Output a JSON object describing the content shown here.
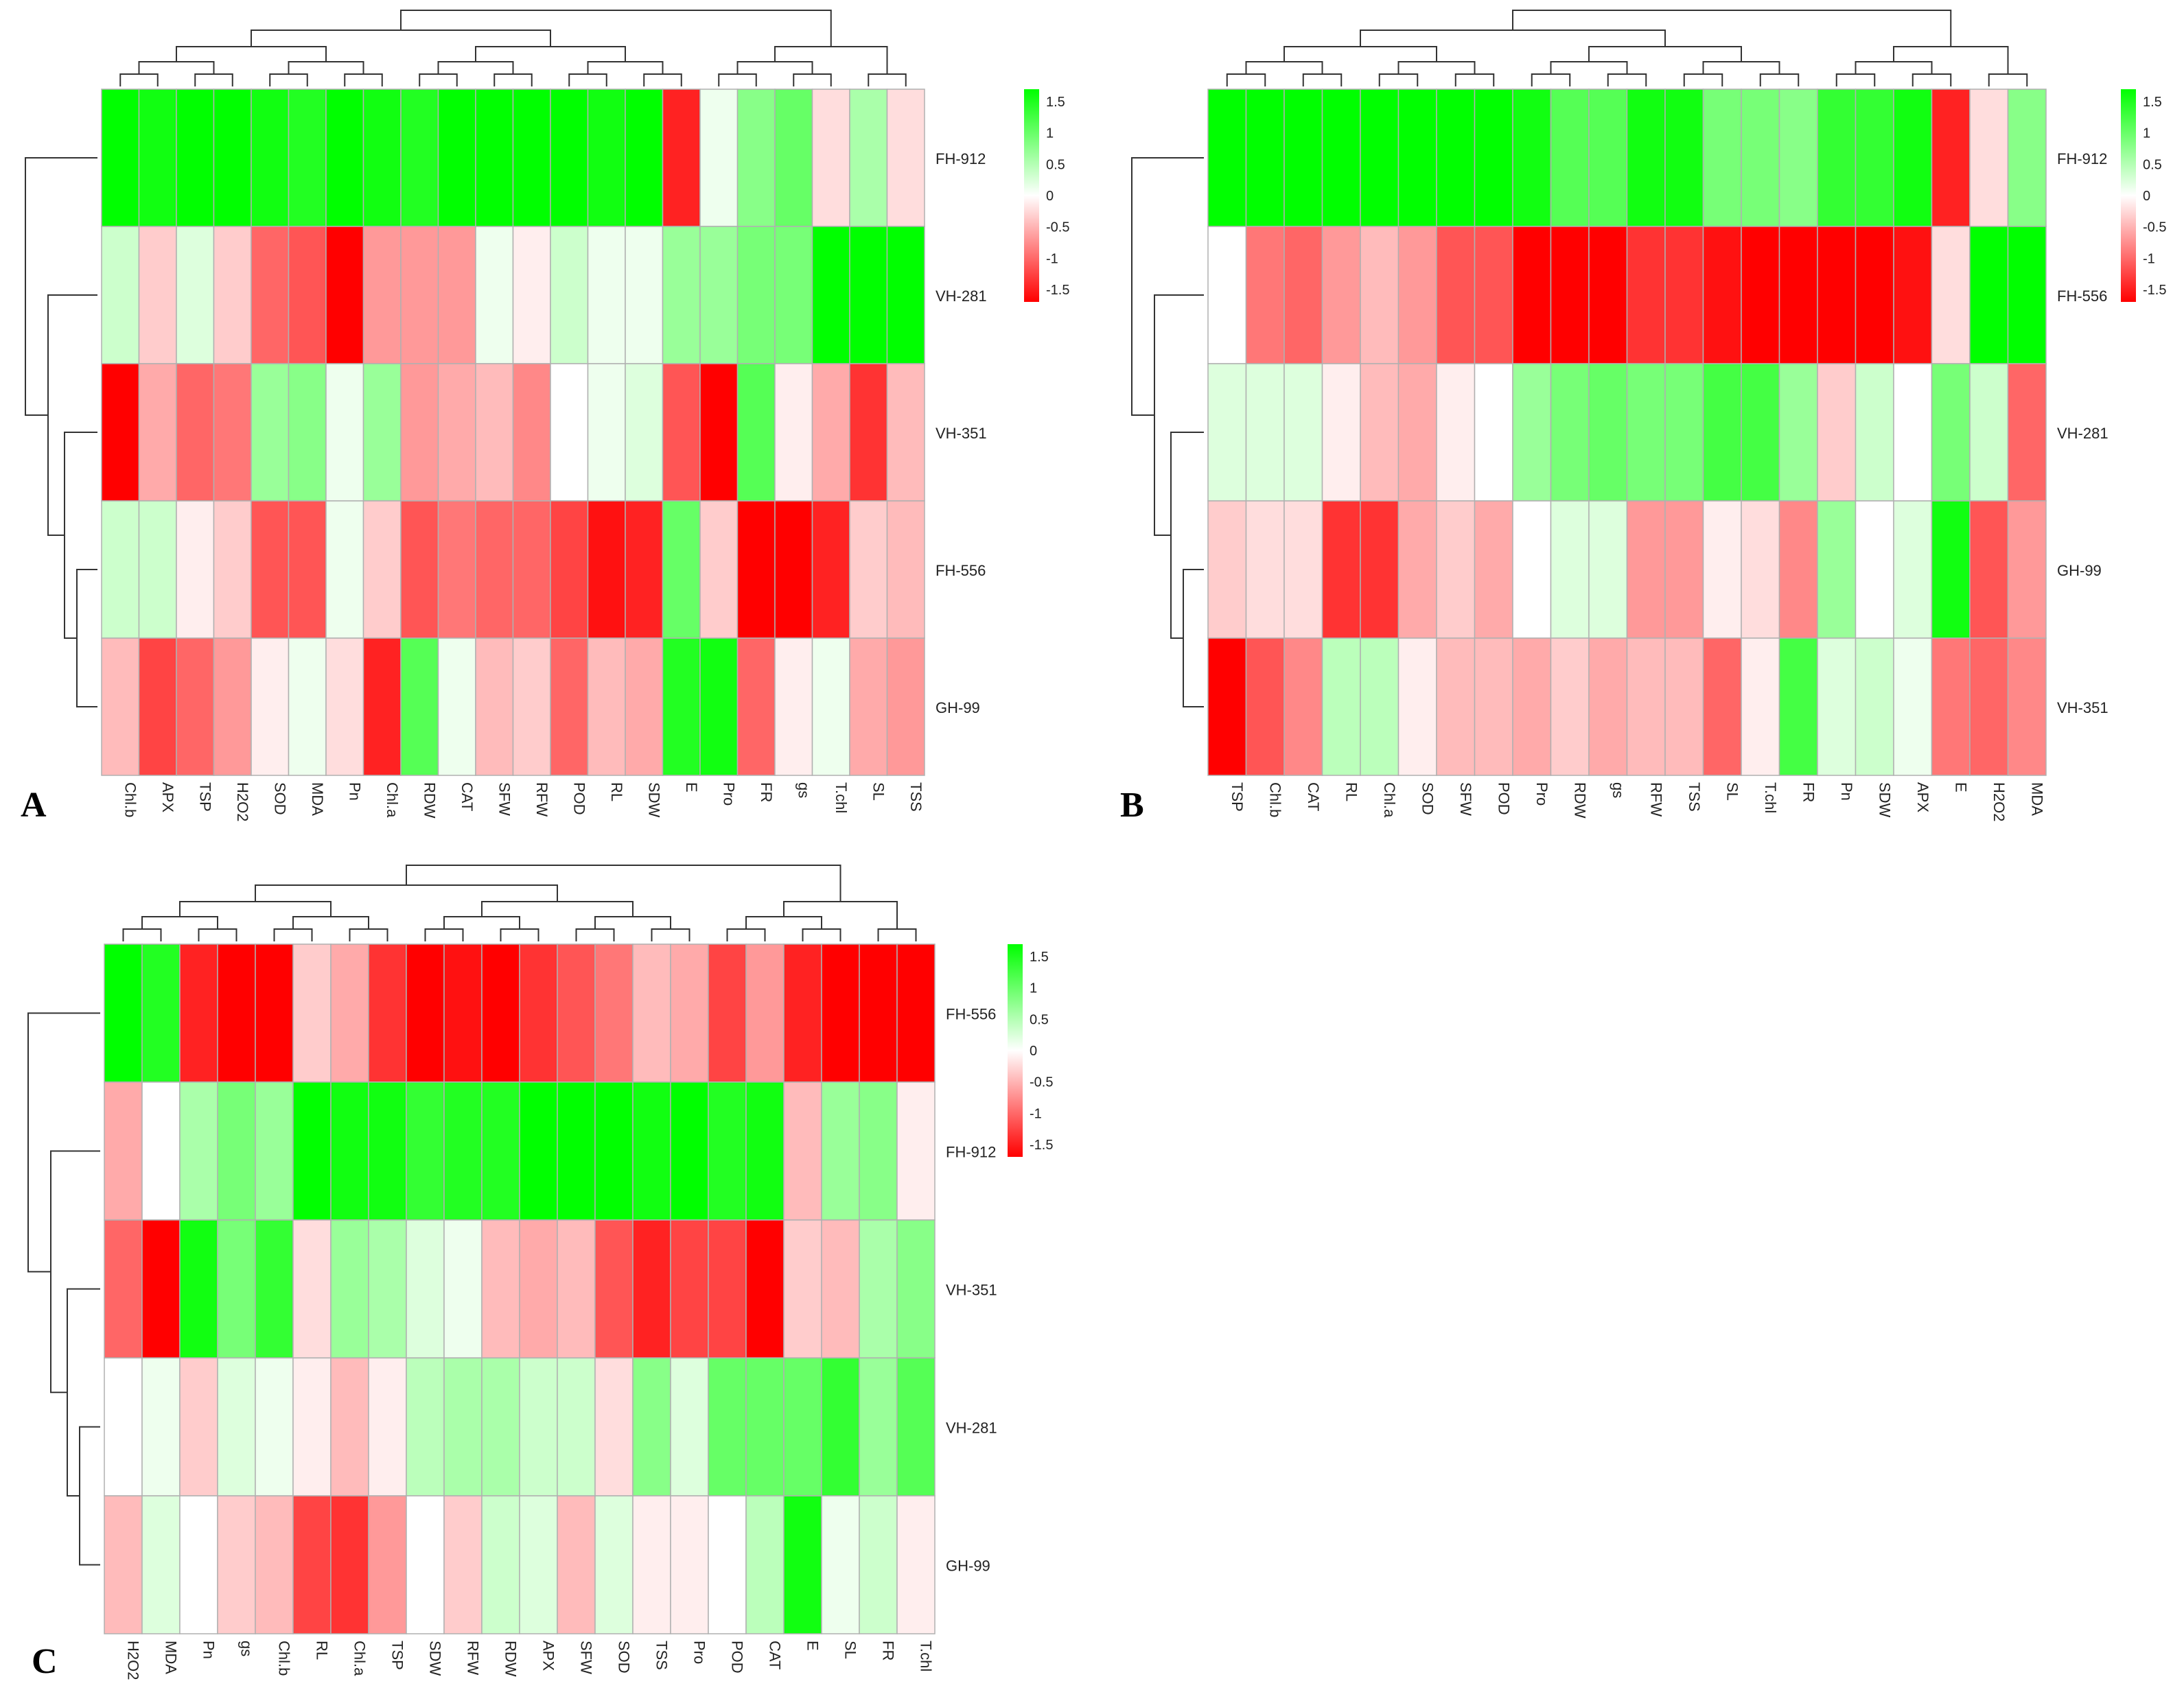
{
  "figure": {
    "colors": {
      "low": "#ff0000",
      "mid": "#ffffff",
      "high": "#00ff00",
      "grid": "#b0b0b0",
      "tree": "#333333"
    },
    "legend_ticks": [
      "1.5",
      "1",
      "0.5",
      "0",
      "-0.5",
      "-1",
      "-1.5"
    ]
  },
  "chart_data": [
    {
      "type": "heatmap",
      "panel": "A",
      "color_scale": {
        "min": -1.5,
        "max": 1.5
      },
      "rows": [
        "FH-912",
        "VH-281",
        "VH-351",
        "FH-556",
        "GH-99"
      ],
      "columns": [
        "Chl.b",
        "APX",
        "TSP",
        "H2O2",
        "SOD",
        "MDA",
        "Pn",
        "Chl.a",
        "RDW",
        "CAT",
        "SFW",
        "RFW",
        "POD",
        "RL",
        "SDW",
        "E",
        "Pro",
        "FR",
        "gs",
        "T.chl",
        "SL",
        "TSS"
      ],
      "values": [
        [
          1.7,
          1.4,
          1.5,
          1.6,
          1.4,
          1.3,
          1.5,
          1.4,
          1.3,
          1.6,
          1.6,
          1.6,
          1.5,
          1.4,
          1.5,
          -1.3,
          0.1,
          0.7,
          0.9,
          -0.2,
          0.5,
          -0.2
        ],
        [
          0.3,
          -0.3,
          0.2,
          -0.3,
          -0.9,
          -1.0,
          -1.5,
          -0.6,
          -0.6,
          -0.6,
          0.1,
          -0.1,
          0.3,
          0.1,
          0.1,
          0.6,
          0.6,
          0.8,
          0.8,
          1.5,
          1.5,
          1.6
        ],
        [
          -1.6,
          -0.5,
          -0.9,
          -0.8,
          0.6,
          0.7,
          0.1,
          0.6,
          -0.6,
          -0.5,
          -0.4,
          -0.7,
          0.0,
          0.1,
          0.2,
          -1.0,
          -1.6,
          1.0,
          -0.1,
          -0.5,
          -1.2,
          -0.4
        ],
        [
          0.3,
          0.3,
          -0.1,
          -0.3,
          -1.0,
          -1.0,
          0.1,
          -0.3,
          -1.0,
          -0.8,
          -0.9,
          -0.9,
          -1.1,
          -1.4,
          -1.3,
          0.9,
          -0.3,
          -1.5,
          -1.6,
          -1.3,
          -0.3,
          -0.4
        ],
        [
          -0.4,
          -1.1,
          -0.9,
          -0.6,
          -0.1,
          0.1,
          -0.2,
          -1.3,
          1.0,
          0.1,
          -0.4,
          -0.3,
          -0.9,
          -0.4,
          -0.5,
          1.3,
          1.4,
          -0.9,
          -0.1,
          0.1,
          -0.5,
          -0.6
        ]
      ]
    },
    {
      "type": "heatmap",
      "panel": "B",
      "color_scale": {
        "min": -1.5,
        "max": 1.5
      },
      "rows": [
        "FH-912",
        "FH-556",
        "VH-281",
        "GH-99",
        "VH-351"
      ],
      "columns": [
        "TSP",
        "Chl.b",
        "CAT",
        "RL",
        "Chl.a",
        "SOD",
        "SFW",
        "POD",
        "Pro",
        "RDW",
        "gs",
        "RFW",
        "TSS",
        "SL",
        "T.chl",
        "FR",
        "Pn",
        "SDW",
        "APX",
        "E",
        "H2O2",
        "MDA"
      ],
      "values": [
        [
          1.6,
          1.6,
          1.6,
          1.6,
          1.6,
          1.7,
          1.7,
          1.7,
          1.4,
          1.0,
          1.0,
          1.4,
          1.4,
          0.8,
          0.8,
          0.7,
          1.2,
          1.2,
          1.4,
          -1.3,
          -0.2,
          0.7
        ],
        [
          0.0,
          -0.8,
          -0.9,
          -0.6,
          -0.4,
          -0.6,
          -1.0,
          -1.0,
          -1.5,
          -1.7,
          -1.6,
          -1.2,
          -1.2,
          -1.4,
          -1.7,
          -1.6,
          -1.6,
          -1.7,
          -1.4,
          -0.2,
          1.5,
          1.6
        ],
        [
          0.2,
          0.2,
          0.2,
          -0.1,
          -0.4,
          -0.5,
          -0.1,
          0.0,
          0.6,
          0.8,
          0.9,
          0.8,
          0.8,
          1.1,
          1.1,
          0.6,
          -0.3,
          0.3,
          0.0,
          0.8,
          0.3,
          -0.9
        ],
        [
          -0.3,
          -0.2,
          -0.2,
          -1.2,
          -1.2,
          -0.5,
          -0.3,
          -0.5,
          0.0,
          0.2,
          0.2,
          -0.6,
          -0.6,
          -0.1,
          -0.2,
          -0.7,
          0.6,
          0.0,
          0.2,
          1.4,
          -1.0,
          -0.6
        ],
        [
          -1.5,
          -1.0,
          -0.7,
          0.4,
          0.4,
          -0.1,
          -0.4,
          -0.4,
          -0.5,
          -0.3,
          -0.5,
          -0.4,
          -0.4,
          -0.9,
          -0.1,
          1.1,
          0.2,
          0.3,
          0.1,
          -0.8,
          -0.9,
          -0.7
        ]
      ]
    },
    {
      "type": "heatmap",
      "panel": "C",
      "color_scale": {
        "min": -1.5,
        "max": 1.5
      },
      "rows": [
        "FH-556",
        "FH-912",
        "VH-351",
        "VH-281",
        "GH-99"
      ],
      "columns": [
        "H2O2",
        "MDA",
        "Pn",
        "gs",
        "Chl.b",
        "RL",
        "Chl.a",
        "TSP",
        "SDW",
        "RFW",
        "RDW",
        "APX",
        "SFW",
        "SOD",
        "TSS",
        "Pro",
        "POD",
        "CAT",
        "E",
        "SL",
        "FR",
        "T.chl"
      ],
      "values": [
        [
          1.5,
          1.3,
          -1.3,
          -1.5,
          -1.5,
          -0.3,
          -0.5,
          -1.2,
          -1.6,
          -1.4,
          -1.5,
          -1.2,
          -1.0,
          -0.8,
          -0.4,
          -0.5,
          -1.1,
          -0.6,
          -1.3,
          -1.5,
          -1.7,
          -1.5
        ],
        [
          -0.5,
          0.0,
          0.5,
          0.8,
          0.6,
          1.6,
          1.4,
          1.4,
          1.2,
          1.3,
          1.3,
          1.5,
          1.6,
          1.6,
          1.4,
          1.5,
          1.3,
          1.4,
          -0.4,
          0.6,
          0.7,
          -0.1
        ],
        [
          -0.9,
          -1.6,
          1.4,
          0.8,
          1.2,
          -0.2,
          0.6,
          0.5,
          0.2,
          0.1,
          -0.4,
          -0.5,
          -0.4,
          -1.0,
          -1.3,
          -1.1,
          -1.1,
          -1.5,
          -0.3,
          -0.4,
          0.5,
          0.7
        ],
        [
          0.0,
          0.1,
          -0.3,
          0.2,
          0.1,
          -0.1,
          -0.4,
          -0.1,
          0.4,
          0.5,
          0.5,
          0.3,
          0.3,
          -0.2,
          0.7,
          0.2,
          0.9,
          0.9,
          0.9,
          1.2,
          0.6,
          1.0
        ],
        [
          -0.4,
          0.2,
          0.0,
          -0.3,
          -0.4,
          -1.1,
          -1.2,
          -0.6,
          0.0,
          -0.3,
          0.3,
          0.2,
          -0.4,
          0.2,
          -0.1,
          -0.1,
          0.0,
          0.4,
          1.4,
          0.1,
          0.3,
          -0.1
        ]
      ]
    }
  ]
}
